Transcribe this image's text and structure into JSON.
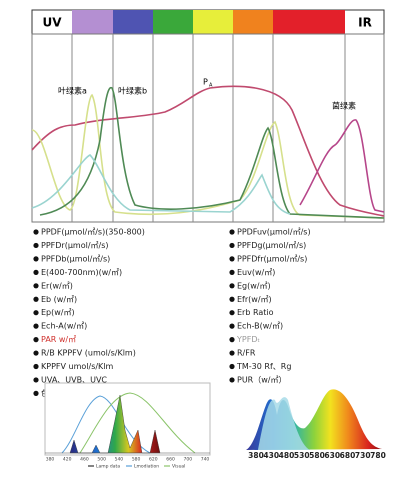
{
  "header": {
    "uv": "UV",
    "ir": "IR"
  },
  "curve_labels": {
    "chl_a": "叶绿素a",
    "chl_b": "叶绿素b",
    "pa": "P",
    "pa_sub": "A",
    "bchl": "菌绿素"
  },
  "left_items": [
    "PPDF(μmol/㎡/s)(350-800)",
    "PPFDr(μmol/㎡/s)",
    "PPFDb(μmol/㎡/s)",
    "E(400-700nm)(w/㎡)",
    "Er(w/㎡)",
    "Eb (w/㎡)",
    "Ep(w/㎡)",
    "Ech-A(w/㎡)",
    "PAR  w/㎡",
    "R/B  KPPFV (umol/s/Klm)",
    "KPPFV   umol/s/Klm",
    "UVA、UVB、UVC",
    "色质指数：CQS"
  ],
  "right_items": [
    "PPDFuv(μmol/㎡/s)",
    "PPFDg(μmol/㎡/s)",
    "PPFDfr(μmol/㎡/s)",
    "Euv(w/㎡)",
    "Eg(w/㎡)",
    "Efr(w/㎡)",
    "Erb Ratio",
    "Ech-B(w/㎡)",
    "YPFDₜ",
    "R/FR",
    "TM-30 Rf、Rg",
    "PUR（w/㎡）"
  ],
  "small_chart": {
    "x_labels": [
      "380",
      "420",
      "460",
      "500",
      "540",
      "580",
      "620",
      "660",
      "700",
      "740"
    ],
    "legend": [
      "Lamp data",
      "Lmodiation",
      "Visual"
    ]
  },
  "spectrum_chart": {
    "x_labels": [
      "380",
      "430",
      "480",
      "530",
      "580",
      "630",
      "680",
      "730",
      "780"
    ]
  }
}
